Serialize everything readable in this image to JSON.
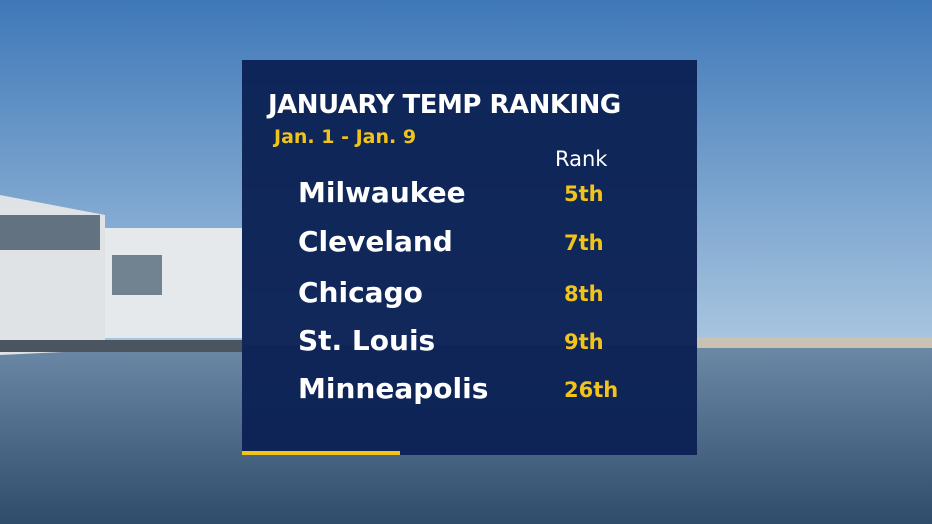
{
  "title": "JANUARY TEMP RANKING",
  "subtitle": "Jan. 1 - Jan. 9",
  "table": {
    "header": "Rank",
    "rows": [
      [
        "Milwaukee",
        "5th"
      ],
      [
        "Cleveland",
        "7th"
      ],
      [
        "Chicago",
        "8th"
      ],
      [
        "St. Louis",
        "9th"
      ],
      [
        "Minneapolis",
        "26th"
      ]
    ]
  }
}
